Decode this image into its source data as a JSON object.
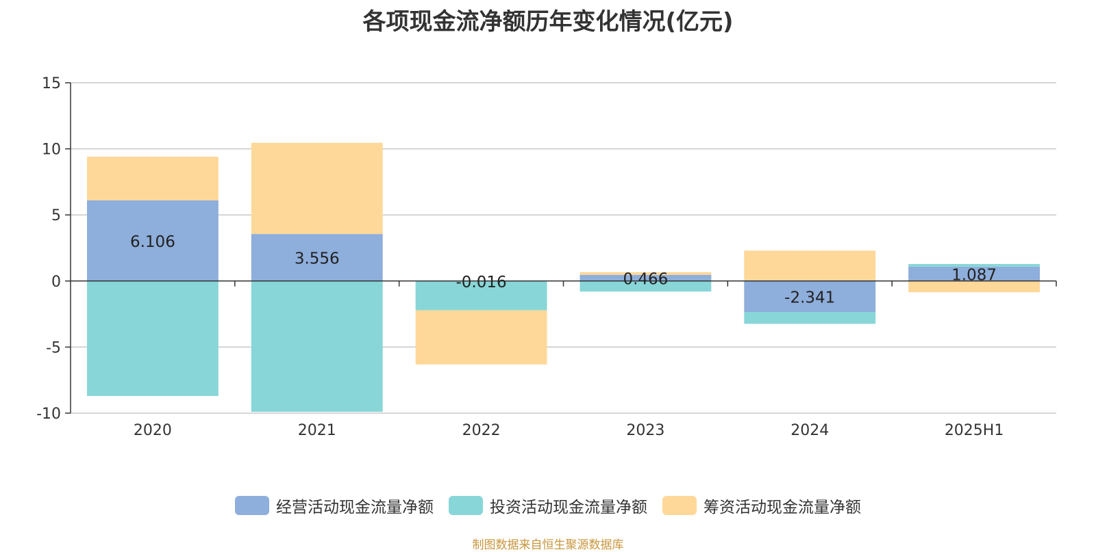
{
  "title": "各项现金流净额历年变化情况(亿元)",
  "source": "制图数据来自恒生聚源数据库",
  "chart_data": {
    "type": "bar",
    "stacked": true,
    "categories": [
      "2020",
      "2021",
      "2022",
      "2023",
      "2024",
      "2025H1"
    ],
    "ylim": [
      -10,
      15
    ],
    "yticks": [
      15,
      10,
      5,
      0,
      -5,
      -10
    ],
    "grid": true,
    "legend_position": "bottom",
    "series": [
      {
        "name": "经营活动现金流量净额",
        "color": "#8eaedb",
        "values": [
          6.106,
          3.556,
          -0.016,
          0.466,
          -2.341,
          1.087
        ],
        "data_labels": [
          "6.106",
          "3.556",
          "-0.016",
          "0.466",
          "-2.341",
          "1.087"
        ]
      },
      {
        "name": "投资活动现金流量净额",
        "color": "#88d6d8",
        "values": [
          -8.7,
          -9.9,
          -2.2,
          -0.8,
          -0.9,
          0.2
        ]
      },
      {
        "name": "筹资活动现金流量净额",
        "color": "#fed899",
        "values": [
          3.3,
          6.9,
          -4.1,
          0.2,
          2.3,
          -0.85
        ]
      }
    ]
  }
}
